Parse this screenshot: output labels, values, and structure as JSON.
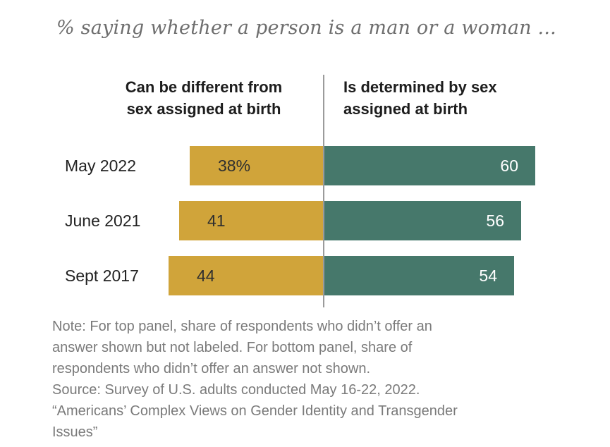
{
  "title": "% saying whether a person is a man or a woman ...",
  "headers": {
    "left": {
      "line1": "Can be different from",
      "line2": "sex assigned at birth"
    },
    "right": {
      "line1": "Is determined by sex",
      "line2": "assigned at birth"
    }
  },
  "chart_data": {
    "type": "bar",
    "variant": "horizontal-diverging-paired",
    "title": "% saying whether a person is a man or a woman ...",
    "categories": [
      "May 2022",
      "June 2021",
      "Sept 2017"
    ],
    "series": [
      {
        "name": "Can be different from sex assigned at birth",
        "direction": "left",
        "color": "#D0A43A",
        "values": [
          38,
          41,
          44
        ],
        "labels": [
          "38%",
          "41",
          "44"
        ]
      },
      {
        "name": "Is determined by sex assigned at birth",
        "direction": "right",
        "color": "#46786B",
        "values": [
          60,
          56,
          54
        ],
        "labels": [
          "60",
          "56",
          "54"
        ]
      }
    ],
    "unit": "percent",
    "xlim": [
      0,
      100
    ],
    "grid": false,
    "legend_position": "column-headers-above-panels"
  },
  "notes": {
    "lines": [
      "Note: For top panel, share of respondents who didn’t offer an",
      "answer shown but not labeled. For bottom panel, share of",
      "respondents who didn’t offer an answer not shown.",
      "Source: Survey of U.S. adults conducted May 16-22, 2022.",
      "“Americans’ Complex Views on Gender Identity and Transgender",
      "Issues”"
    ]
  },
  "colors": {
    "gold": "#D0A43A",
    "green": "#46786B",
    "divider": "#9b9b9b",
    "title_gray": "#6e6e6e",
    "note_gray": "#7a7a7a"
  }
}
